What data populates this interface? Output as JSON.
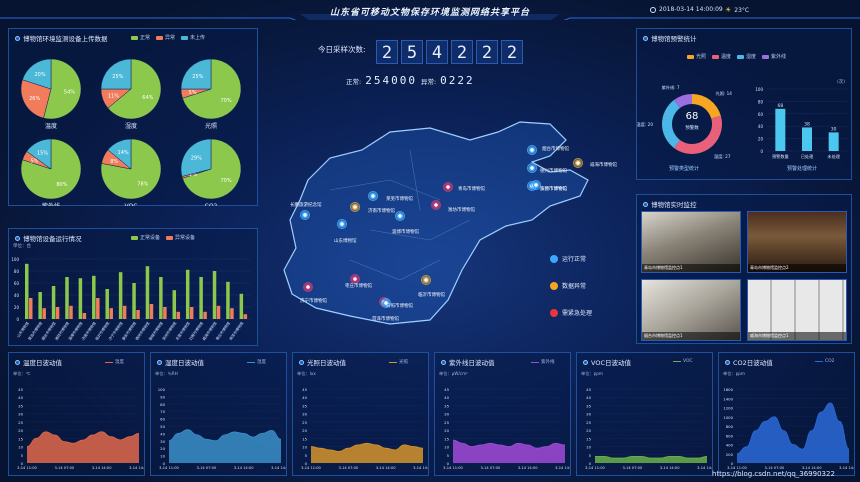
{
  "header": {
    "title": "山东省可移动文物保存环境监测网络共享平台",
    "datetime": "2018-03-14  14:00:09",
    "weather": "23°C"
  },
  "counter": {
    "label": "今日采样次数:",
    "digits": [
      "2",
      "5",
      "4",
      "2",
      "2",
      "2"
    ],
    "normal_label": "正常:",
    "normal_value": "254000",
    "abnormal_label": "异常:",
    "abnormal_value": "0222"
  },
  "upload": {
    "title": "博物馆环境监测设备上传数据",
    "legend": [
      "正常",
      "异常",
      "未上传"
    ],
    "colors": {
      "normal": "#8cc84b",
      "abnormal": "#f07c5c",
      "missing": "#4cb8d8"
    },
    "pies": [
      {
        "name": "温度",
        "values": [
          54,
          26,
          20
        ],
        "labels": [
          "54%",
          "26%",
          "20%"
        ]
      },
      {
        "name": "湿度",
        "values": [
          64,
          11,
          25
        ],
        "labels": [
          "64%",
          "11%",
          "25%"
        ]
      },
      {
        "name": "光照",
        "values": [
          70,
          5,
          25
        ],
        "labels": [
          "70%",
          "5%",
          "25%"
        ]
      },
      {
        "name": "紫外线",
        "values": [
          80,
          5,
          15
        ],
        "labels": [
          "80%",
          "5%",
          "15%"
        ]
      },
      {
        "name": "VOC",
        "values": [
          78,
          8,
          14
        ],
        "labels": [
          "78%",
          "8%",
          "14%"
        ]
      },
      {
        "name": "CO2",
        "values": [
          70,
          1,
          29
        ],
        "labels": [
          "70%",
          "1%",
          "29%"
        ]
      }
    ]
  },
  "equip": {
    "title": "博物馆设备运行情况",
    "unit": "单位：台",
    "legend": [
      "正常设备",
      "异常设备"
    ],
    "yticks": [
      "100",
      "80",
      "60",
      "40",
      "20",
      "0"
    ],
    "chart_data": {
      "type": "bar",
      "ylim": [
        0,
        100
      ],
      "categories": [
        "山东博物馆",
        "青岛市博物馆",
        "烟台市博物馆",
        "潍坊市博物馆",
        "淄博市博物馆",
        "济南市博物馆",
        "临沂市博物馆",
        "济宁市博物馆",
        "泰安市博物馆",
        "德州市博物馆",
        "聊城市博物馆",
        "滨州市博物馆",
        "东营市博物馆",
        "日照市博物馆",
        "威海市博物馆",
        "枣庄市博物馆",
        "菏泽市博物馆"
      ],
      "series": [
        {
          "name": "正常设备",
          "values": [
            92,
            45,
            55,
            70,
            68,
            72,
            50,
            78,
            60,
            88,
            70,
            48,
            82,
            70,
            80,
            62,
            42
          ]
        },
        {
          "name": "异常设备",
          "values": [
            35,
            18,
            20,
            22,
            10,
            35,
            18,
            22,
            15,
            25,
            20,
            12,
            20,
            12,
            22,
            18,
            8
          ]
        }
      ]
    }
  },
  "map": {
    "cities": [
      {
        "name": "长鹏旅游纪念馆",
        "type": "normal"
      },
      {
        "name": "济南市博物馆",
        "type": "warn"
      },
      {
        "name": "莱芜市博物馆",
        "type": "normal"
      },
      {
        "name": "山东博物馆",
        "type": "normal"
      },
      {
        "name": "淄博市博物馆",
        "type": "normal"
      },
      {
        "name": "潍坊市博物馆",
        "type": "alarm"
      },
      {
        "name": "青岛市博物馆",
        "type": "alarm"
      },
      {
        "name": "烟台市博物馆",
        "type": "normal"
      },
      {
        "name": "威海市博物馆",
        "type": "warn"
      },
      {
        "name": "枣庄市博物馆",
        "type": "alarm"
      },
      {
        "name": "济宁市博物馆",
        "type": "alarm"
      },
      {
        "name": "临沂市博物馆",
        "type": "warn"
      },
      {
        "name": "菏泽市博物馆",
        "type": "alarm"
      },
      {
        "name": "德州市博物馆",
        "type": "normal"
      },
      {
        "name": "东营市博物馆",
        "type": "normal"
      },
      {
        "name": "日照市博物馆",
        "type": "normal"
      },
      {
        "name": "滨州市博物馆",
        "type": "normal"
      }
    ],
    "status": [
      {
        "label": "运行正常",
        "color": "#3aa8ff"
      },
      {
        "label": "数据异常",
        "color": "#f5a623"
      },
      {
        "label": "需紧急处理",
        "color": "#e8363a"
      }
    ]
  },
  "alarm": {
    "title": "博物馆预警统计",
    "legend": [
      "光照",
      "温度",
      "湿度",
      "紫外线"
    ],
    "legend_colors": [
      "#f5a623",
      "#e8607a",
      "#4cb8e8",
      "#9b6fe0"
    ],
    "donut": {
      "total": "68",
      "total_label": "预警数",
      "values": [
        14,
        27,
        20,
        7
      ],
      "colors": [
        "#f5a623",
        "#e8607a",
        "#4cb8e8",
        "#9b6fe0"
      ],
      "labels": [
        "光照: 14",
        "湿度: 27",
        "温度: 20",
        "紫外线: 7"
      ],
      "caption": "预警类型统计"
    },
    "bars": {
      "unit": "(次)",
      "yticks": [
        "100",
        "80",
        "60",
        "40",
        "20",
        "0"
      ],
      "caption": "预警处理统计",
      "chart_data": {
        "type": "bar",
        "ylim": [
          0,
          100
        ],
        "categories": [
          "预警数量",
          "已处理",
          "未处理"
        ],
        "values": [
          68,
          38,
          30
        ]
      }
    }
  },
  "video": {
    "title": "博物馆实时监控",
    "cams": [
      {
        "caption": "青岛市博物馆监控点1"
      },
      {
        "caption": "青岛市博物馆监控点2"
      },
      {
        "caption": "烟台市博物馆监控点1"
      },
      {
        "caption": "威海市博物馆监控点1"
      }
    ]
  },
  "waves": [
    {
      "title": "温度日波动值",
      "legend": "温度",
      "unit": "单位：℃",
      "color": "#e0694a",
      "yticks": [
        "45",
        "40",
        "35",
        "30",
        "25",
        "20",
        "15",
        "10",
        "5",
        "0"
      ],
      "xticks": [
        "3-14 11:00",
        "3-14 07:00",
        "3-14 14:00",
        "3-14 14:00"
      ],
      "chart_data": {
        "type": "area",
        "ylim": [
          0,
          45
        ],
        "values": [
          10,
          15,
          19,
          17,
          13,
          12,
          14,
          17,
          19,
          16,
          14,
          16,
          18
        ]
      }
    },
    {
      "title": "湿度日波动值",
      "legend": "湿度",
      "unit": "单位：％RH",
      "color": "#3a8fc8",
      "yticks": [
        "100",
        "90",
        "80",
        "70",
        "60",
        "50",
        "40",
        "30",
        "20",
        "10",
        "0"
      ],
      "xticks": [
        "3-14 11:00",
        "3-14 07:00",
        "3-14 14:00",
        "3-14 14:00"
      ],
      "chart_data": {
        "type": "area",
        "ylim": [
          0,
          100
        ],
        "values": [
          30,
          40,
          45,
          38,
          32,
          30,
          38,
          42,
          40,
          35,
          40,
          44,
          32
        ]
      }
    },
    {
      "title": "光照日波动值",
      "legend": "光照",
      "unit": "单位：lux",
      "color": "#d6942a",
      "yticks": [
        "45",
        "40",
        "35",
        "30",
        "25",
        "20",
        "15",
        "10",
        "5",
        "0"
      ],
      "xticks": [
        "3-14 11:00",
        "3-14 07:00",
        "3-14 14:00",
        "3-14 14:00"
      ],
      "chart_data": {
        "type": "area",
        "ylim": [
          0,
          45
        ],
        "values": [
          10,
          9,
          8,
          7,
          9,
          11,
          12,
          11,
          9,
          8,
          11,
          10,
          9
        ]
      }
    },
    {
      "title": "紫外线日波动值",
      "legend": "紫外线",
      "unit": "单位：μW/cm²",
      "color": "#a04ad8",
      "yticks": [
        "45",
        "40",
        "35",
        "30",
        "25",
        "20",
        "15",
        "10",
        "5",
        "0"
      ],
      "xticks": [
        "3-14 11:00",
        "3-14 07:00",
        "3-14 14:00",
        "3-14 14:00"
      ],
      "chart_data": {
        "type": "area",
        "ylim": [
          0,
          45
        ],
        "values": [
          14,
          12,
          10,
          11,
          12,
          11,
          10,
          12,
          11,
          9,
          10,
          12,
          11
        ]
      }
    },
    {
      "title": "VOC日波动值",
      "legend": "VOC",
      "unit": "单位：ppm",
      "color": "#6ab04a",
      "yticks": [
        "45",
        "40",
        "35",
        "30",
        "25",
        "20",
        "15",
        "10",
        "5",
        "0"
      ],
      "xticks": [
        "3-14 11:00",
        "3-14 07:00",
        "3-14 14:00",
        "3-14 14:00"
      ],
      "chart_data": {
        "type": "area",
        "ylim": [
          0,
          45
        ],
        "values": [
          4,
          4,
          3,
          3,
          4,
          4,
          3,
          3,
          4,
          4,
          3,
          3,
          4
        ]
      }
    },
    {
      "title": "CO2日波动值",
      "legend": "CO2",
      "unit": "单位：ppm",
      "color": "#2a6ad8",
      "yticks": [
        "1600",
        "1400",
        "1200",
        "1000",
        "800",
        "600",
        "400",
        "200",
        "0"
      ],
      "xticks": [
        "3-14 11:00",
        "3-14 07:00",
        "3-14 14:00",
        "3-14 14:00"
      ],
      "chart_data": {
        "type": "area",
        "ylim": [
          0,
          1600
        ],
        "values": [
          200,
          350,
          700,
          900,
          1000,
          700,
          400,
          300,
          700,
          1100,
          1300,
          900,
          300
        ]
      }
    }
  ],
  "footer": {
    "watermark": "https://blog.csdn.net/qq_36990322"
  }
}
